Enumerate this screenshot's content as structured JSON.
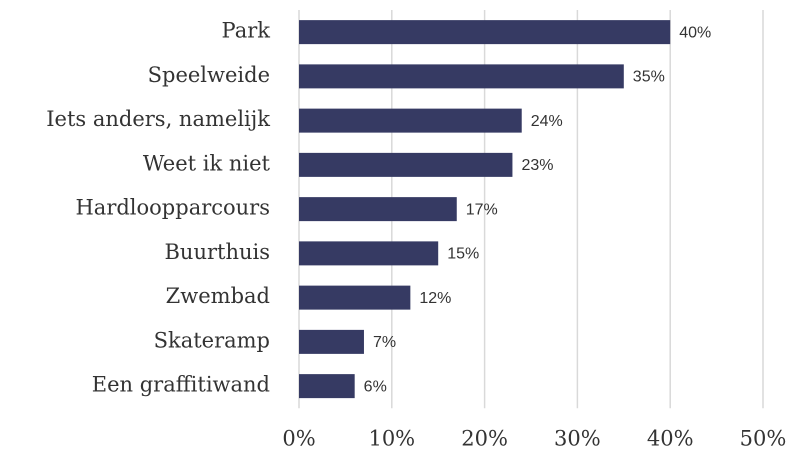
{
  "chart_data": {
    "type": "bar",
    "orientation": "horizontal",
    "categories": [
      "Park",
      "Speelweide",
      "Iets anders, namelijk",
      "Weet ik niet",
      "Hardloopparcours",
      "Buurthuis",
      "Zwembad",
      "Skateramp",
      "Een graffitiwand"
    ],
    "values": [
      40,
      35,
      24,
      23,
      17,
      15,
      12,
      7,
      6
    ],
    "value_labels": [
      "40%",
      "35%",
      "24%",
      "23%",
      "17%",
      "15%",
      "12%",
      "7%",
      "6%"
    ],
    "color": "#363a63",
    "xlim": [
      0,
      50
    ],
    "xticks": [
      {
        "value": 0,
        "label": "0%"
      },
      {
        "value": 10,
        "label": "10%"
      },
      {
        "value": 20,
        "label": "20%"
      },
      {
        "value": 30,
        "label": "30%"
      },
      {
        "value": 40,
        "label": "40%"
      },
      {
        "value": 50,
        "label": "50%"
      }
    ],
    "grid": true
  }
}
